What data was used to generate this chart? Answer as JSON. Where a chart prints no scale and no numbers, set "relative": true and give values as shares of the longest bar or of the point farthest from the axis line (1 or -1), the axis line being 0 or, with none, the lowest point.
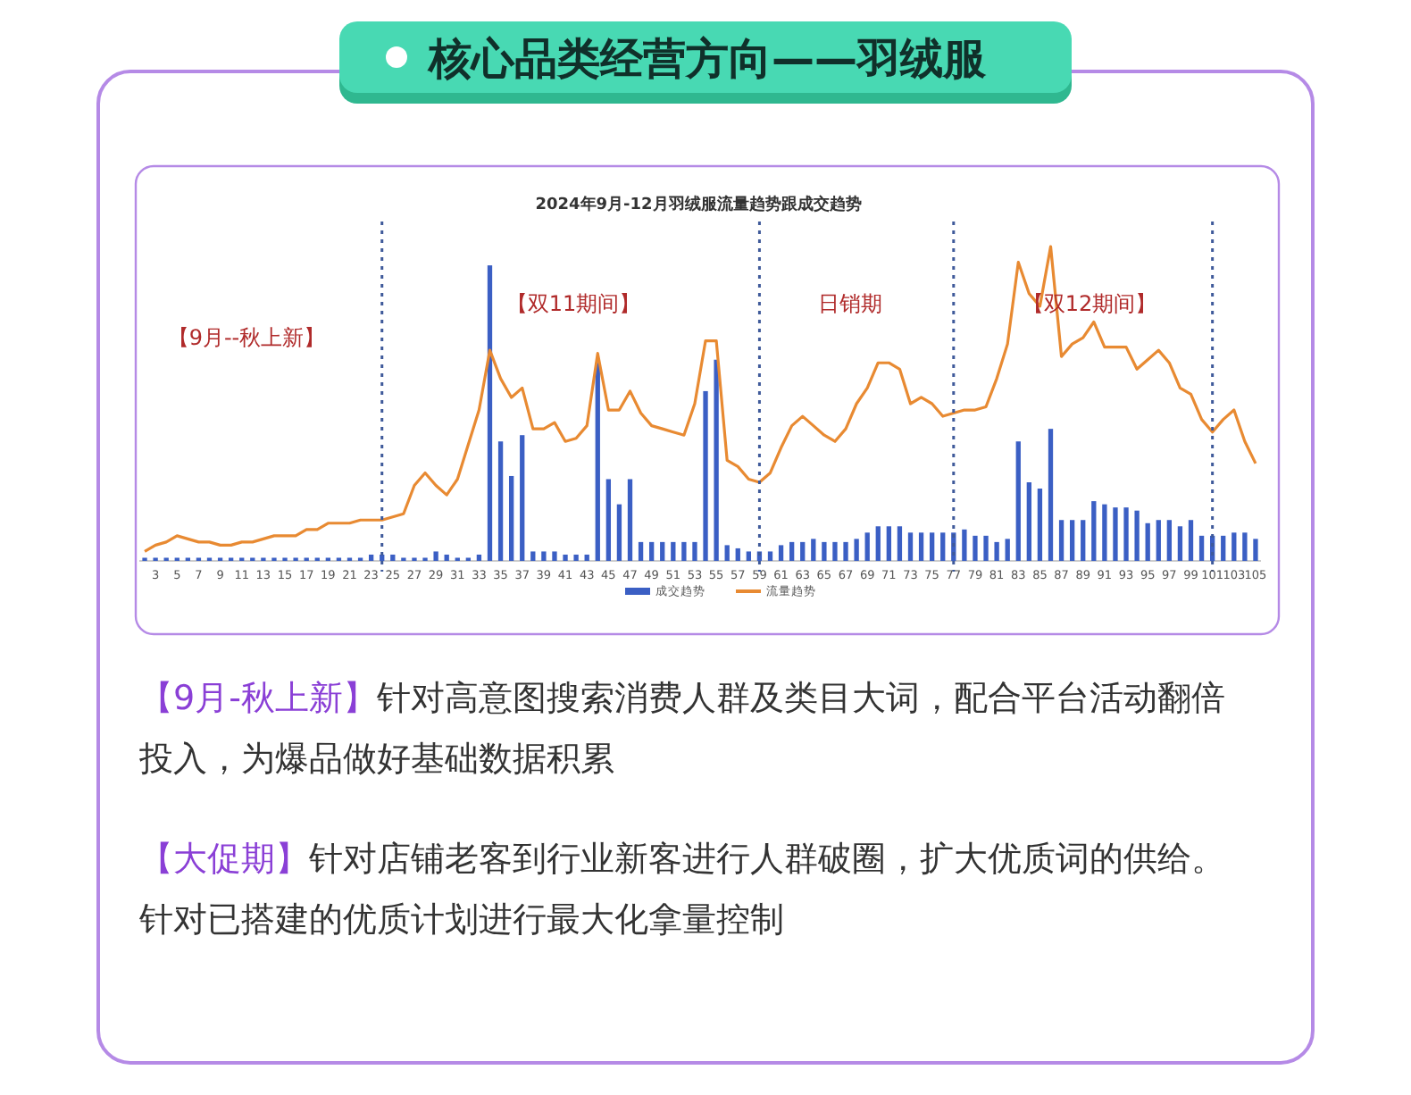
{
  "chart_data": {
    "type": "bar",
    "title": "核心品类经营方向——羽绒服",
    "subtitle": "2024年9月-12月羽绒服流量趋势跟成交趋势",
    "relative": true,
    "legend": "bottom",
    "x": [
      2,
      3,
      4,
      5,
      6,
      7,
      8,
      9,
      10,
      11,
      12,
      13,
      14,
      15,
      16,
      17,
      18,
      19,
      20,
      21,
      22,
      23,
      24,
      25,
      26,
      27,
      28,
      29,
      30,
      31,
      32,
      33,
      34,
      35,
      36,
      37,
      38,
      39,
      40,
      41,
      42,
      43,
      44,
      45,
      46,
      47,
      48,
      49,
      50,
      51,
      52,
      53,
      54,
      55,
      56,
      57,
      58,
      59,
      60,
      61,
      62,
      63,
      64,
      65,
      66,
      67,
      68,
      69,
      70,
      71,
      72,
      73,
      74,
      75,
      76,
      77,
      78,
      79,
      80,
      81,
      82,
      83,
      84,
      85,
      86,
      87,
      88,
      89,
      90,
      91,
      92,
      93,
      94,
      95,
      96,
      97,
      98,
      99,
      100,
      101,
      102,
      103,
      104,
      105
    ],
    "xlim": [
      1.5,
      105.5
    ],
    "xticks": [
      3,
      5,
      7,
      9,
      11,
      13,
      15,
      17,
      19,
      21,
      23,
      25,
      27,
      29,
      31,
      33,
      35,
      37,
      39,
      41,
      43,
      45,
      47,
      49,
      51,
      53,
      55,
      57,
      59,
      61,
      63,
      65,
      67,
      69,
      71,
      73,
      75,
      77,
      79,
      81,
      83,
      85,
      87,
      89,
      91,
      93,
      95,
      97,
      99,
      101,
      103,
      105
    ],
    "series": [
      {
        "name": "成交趋势",
        "color": "#3b5fc4",
        "values": [
          0.01,
          0.01,
          0.01,
          0.01,
          0.01,
          0.01,
          0.01,
          0.01,
          0.01,
          0.01,
          0.01,
          0.01,
          0.01,
          0.01,
          0.01,
          0.01,
          0.01,
          0.01,
          0.01,
          0.01,
          0.01,
          0.02,
          0.02,
          0.02,
          0.01,
          0.01,
          0.01,
          0.03,
          0.02,
          0.01,
          0.01,
          0.02,
          0.94,
          0.38,
          0.27,
          0.4,
          0.03,
          0.03,
          0.03,
          0.02,
          0.02,
          0.02,
          0.63,
          0.26,
          0.18,
          0.26,
          0.06,
          0.06,
          0.06,
          0.06,
          0.06,
          0.06,
          0.54,
          0.64,
          0.05,
          0.04,
          0.03,
          0.03,
          0.03,
          0.05,
          0.06,
          0.06,
          0.07,
          0.06,
          0.06,
          0.06,
          0.07,
          0.09,
          0.11,
          0.11,
          0.11,
          0.09,
          0.09,
          0.09,
          0.09,
          0.09,
          0.1,
          0.08,
          0.08,
          0.06,
          0.07,
          0.38,
          0.25,
          0.23,
          0.42,
          0.13,
          0.13,
          0.13,
          0.19,
          0.18,
          0.17,
          0.17,
          0.16,
          0.12,
          0.13,
          0.13,
          0.11,
          0.13,
          0.08,
          0.08,
          0.08,
          0.09,
          0.09,
          0.07
        ]
      },
      {
        "name": "流量趋势",
        "type": "line",
        "color": "#e88a32",
        "values": [
          0.03,
          0.05,
          0.06,
          0.08,
          0.07,
          0.06,
          0.06,
          0.05,
          0.05,
          0.06,
          0.06,
          0.07,
          0.08,
          0.08,
          0.08,
          0.1,
          0.1,
          0.12,
          0.12,
          0.12,
          0.13,
          0.13,
          0.13,
          0.14,
          0.15,
          0.24,
          0.28,
          0.24,
          0.21,
          0.26,
          0.37,
          0.48,
          0.67,
          0.58,
          0.52,
          0.55,
          0.42,
          0.42,
          0.44,
          0.38,
          0.39,
          0.43,
          0.66,
          0.48,
          0.48,
          0.54,
          0.47,
          0.43,
          0.42,
          0.41,
          0.4,
          0.5,
          0.7,
          0.7,
          0.32,
          0.3,
          0.26,
          0.25,
          0.28,
          0.36,
          0.43,
          0.46,
          0.43,
          0.4,
          0.38,
          0.42,
          0.5,
          0.55,
          0.63,
          0.63,
          0.61,
          0.5,
          0.52,
          0.5,
          0.46,
          0.47,
          0.48,
          0.48,
          0.49,
          0.58,
          0.69,
          0.95,
          0.85,
          0.81,
          1,
          0.65,
          0.69,
          0.71,
          0.76,
          0.68,
          0.68,
          0.68,
          0.61,
          0.64,
          0.67,
          0.63,
          0.55,
          0.53,
          0.45,
          0.41,
          0.45,
          0.48,
          0.38,
          0.31
        ]
      }
    ],
    "ref_lines": [
      {
        "axis": "x",
        "value": 24,
        "color": "#3f5a9a",
        "line_style": "dotted"
      },
      {
        "axis": "x",
        "value": 59,
        "color": "#3f5a9a",
        "line_style": "dotted"
      },
      {
        "axis": "x",
        "value": 77,
        "color": "#3f5a9a",
        "line_style": "dotted"
      },
      {
        "axis": "x",
        "value": 101,
        "color": "#3f5a9a",
        "line_style": "dotted"
      }
    ],
    "annotations": [
      "【9月--秋上新】",
      "【双11期间】",
      "日销期",
      "【双12期间】",
      "【9月-秋上新】针对高意图搜索消费人群及类目大词，配合平台活动翻倍投入，为爆品做好基础数据积累",
      "【大促期】针对店铺老客到行业新客进行人群破圈，扩大优质词的供给。针对已搭建的优质计划进行最大化拿量控制"
    ]
  }
}
